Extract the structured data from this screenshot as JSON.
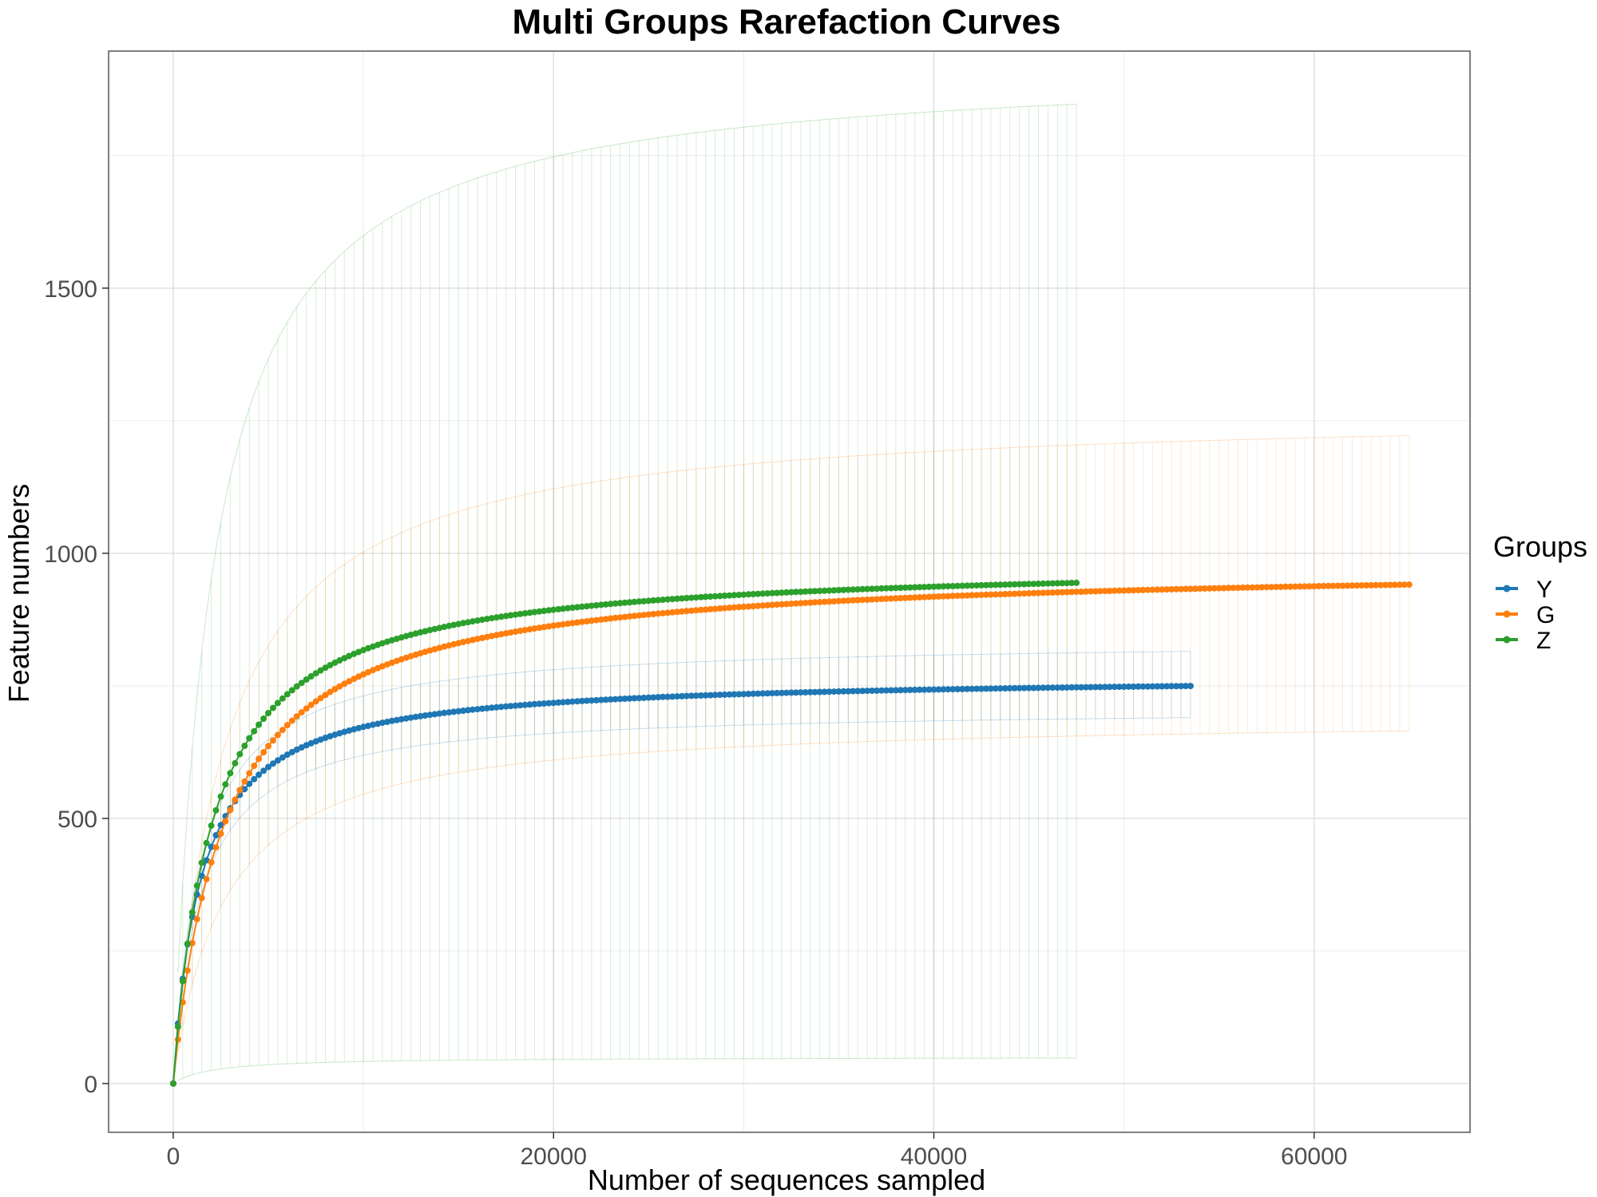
{
  "chart_data": {
    "type": "line",
    "title": "Multi Groups Rarefaction Curves",
    "xlabel": "Number of sequences sampled",
    "ylabel": "Feature numbers",
    "xlim": [
      -3400,
      68200
    ],
    "ylim": [
      -92,
      1947
    ],
    "x_ticks": [
      0,
      20000,
      40000,
      60000
    ],
    "x_tick_labels": [
      "0",
      "20000",
      "40000",
      "60000"
    ],
    "y_ticks": [
      0,
      500,
      1000,
      1500
    ],
    "y_tick_labels": [
      "0",
      "500",
      "1000",
      "1500"
    ],
    "grid": true,
    "legend_title": "Groups",
    "legend_position": "right",
    "series": [
      {
        "name": "Y",
        "color": "#1f77b4",
        "max_x": 53500,
        "asymptote": 770,
        "half_saturation": 1450,
        "error_band": {
          "upper_end": 815,
          "lower_end": 690
        }
      },
      {
        "name": "G",
        "color": "#ff7f0e",
        "max_x": 65000,
        "asymptote": 980,
        "half_saturation": 2700,
        "error_band": {
          "upper_end": 1222,
          "lower_end": 665
        }
      },
      {
        "name": "Z",
        "color": "#2ca02c",
        "max_x": 47500,
        "asymptote": 985,
        "half_saturation": 2050,
        "error_band": {
          "upper_end": 1847,
          "lower_end": 48
        }
      }
    ]
  }
}
